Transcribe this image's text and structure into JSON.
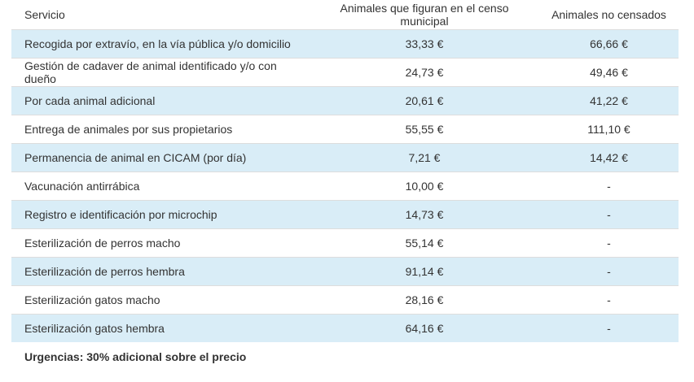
{
  "colors": {
    "page_background": "#ffffff",
    "row_highlight": "#d9edf7",
    "row_plain": "#ffffff",
    "row_border": "#dddddd",
    "text": "#333333"
  },
  "chart_data": {
    "type": "table",
    "title": "",
    "columns": [
      "Servicio",
      "Animales que figuran en el censo municipal",
      "Animales no censados"
    ],
    "rows": [
      [
        "Recogida por extravío, en la vía pública y/o domicilio",
        "33,33 €",
        "66,66 €"
      ],
      [
        "Gestión de cadaver de animal identificado y/o con dueño",
        "24,73 €",
        "49,46 €"
      ],
      [
        "Por cada animal adicional",
        "20,61 €",
        "41,22 €"
      ],
      [
        "Entrega de animales por sus propietarios",
        "55,55 €",
        "111,10 €"
      ],
      [
        "Permanencia de animal en CICAM (por día)",
        "7,21 €",
        "14,42 €"
      ],
      [
        "Vacunación antirrábica",
        "10,00 €",
        "-"
      ],
      [
        "Registro e identificación por microchip",
        "14,73 €",
        "-"
      ],
      [
        "Esterilización de perros macho",
        "55,14 €",
        "-"
      ],
      [
        "Esterilización de perros hembra",
        "91,14 €",
        "-"
      ],
      [
        "Esterilización gatos macho",
        "28,16 €",
        "-"
      ],
      [
        "Esterilización gatos hembra",
        "64,16 €",
        "-"
      ]
    ],
    "footer": "Urgencias: 30% adicional sobre el precio",
    "layout": {
      "striping": "odd rows highlighted light blue",
      "value_alignment": "center",
      "service_alignment": "left"
    }
  }
}
